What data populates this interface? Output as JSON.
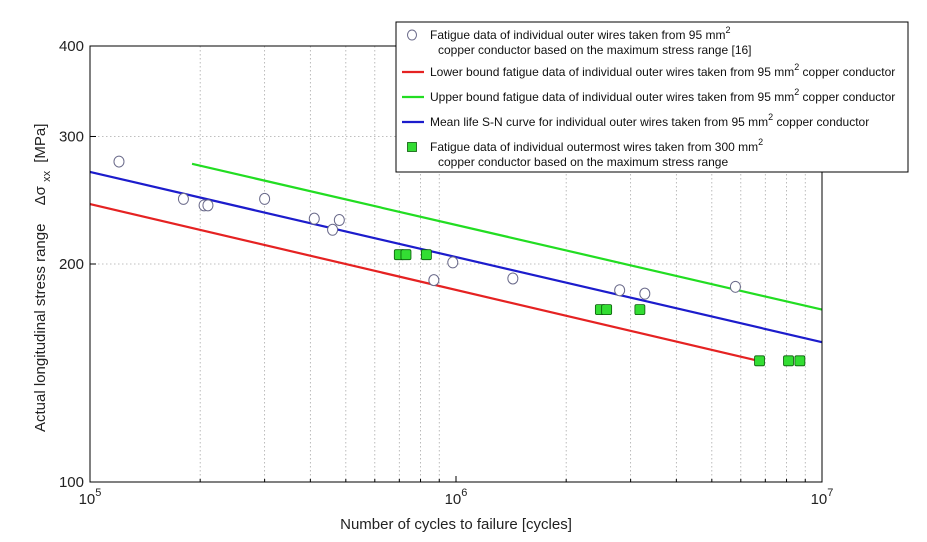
{
  "chart_data": {
    "type": "scatter",
    "x_scale": "log",
    "y_scale": "log",
    "xlim": [
      100000,
      10000000
    ],
    "ylim": [
      100,
      400
    ],
    "xlabel": "Number of cycles to failure [cycles]",
    "ylabel": "Actual longitudinal stress range",
    "ylabel_symbol": "Δσ",
    "ylabel_subscript": "xx",
    "ylabel_unit": "[MPa]",
    "x_ticks": [
      {
        "value": 100000,
        "base": "10",
        "exp": "5"
      },
      {
        "value": 1000000,
        "base": "10",
        "exp": "6"
      },
      {
        "value": 10000000,
        "base": "10",
        "exp": "7"
      }
    ],
    "y_ticks": [
      {
        "value": 100,
        "label": "100"
      },
      {
        "value": 200,
        "label": "200"
      },
      {
        "value": 300,
        "label": "300"
      },
      {
        "value": 400,
        "label": "400"
      }
    ],
    "grid": true,
    "legend_position": "top-right",
    "series": [
      {
        "name": "Fatigue data of individual outer wires taken from 95 mm2 copper conductor based on the maximum stress range [16]",
        "legend_lines": [
          {
            "text": "Fatigue data of individual outer wires taken from 95 mm",
            "sup": "2"
          },
          {
            "text": "copper conductor based on the maximum stress range [16]",
            "sup": ""
          }
        ],
        "kind": "scatter",
        "marker": "open-circle",
        "color": "#6a6a8a",
        "points": [
          [
            120000,
            277
          ],
          [
            180000,
            246
          ],
          [
            205000,
            241
          ],
          [
            210000,
            241
          ],
          [
            300000,
            246
          ],
          [
            410000,
            231
          ],
          [
            460000,
            223
          ],
          [
            480000,
            230
          ],
          [
            870000,
            190
          ],
          [
            980000,
            201
          ],
          [
            1430000,
            191
          ],
          [
            2800000,
            184
          ],
          [
            3280000,
            182
          ],
          [
            5800000,
            186
          ]
        ]
      },
      {
        "name": "Lower bound fatigue data of individual outer wires taken from 95 mm2 copper conductor",
        "legend_lines": [
          {
            "text": "Lower bound fatigue data of individual outer wires taken from 95 mm",
            "sup": "2",
            "after": " copper conductor"
          }
        ],
        "kind": "line",
        "color": "#e52222",
        "points": [
          [
            100000,
            242
          ],
          [
            6700000,
            147
          ]
        ]
      },
      {
        "name": "Upper bound fatigue data of individual outer wires taken from 95 mm2 copper conductor",
        "legend_lines": [
          {
            "text": "Upper bound fatigue data of individual outer wires taken from 95 mm",
            "sup": "2",
            "after": " copper conductor"
          }
        ],
        "kind": "line",
        "color": "#22dd22",
        "points": [
          [
            190000,
            275
          ],
          [
            10000000,
            173
          ]
        ]
      },
      {
        "name": "Mean life S-N curve for individual outer wires taken from 95 mm2 copper conductor",
        "legend_lines": [
          {
            "text": "Mean life S-N curve for individual outer wires taken from 95 mm",
            "sup": "2",
            "after": " copper conductor"
          }
        ],
        "kind": "line",
        "color": "#1c1ccc",
        "points": [
          [
            100000,
            268
          ],
          [
            10000000,
            156
          ]
        ]
      },
      {
        "name": "Fatigue data of individual outermost wires taken from 300 mm2 copper conductor based on the maximum stress range",
        "legend_lines": [
          {
            "text": "Fatigue data of individual outermost wires taken from 300 mm",
            "sup": "2"
          },
          {
            "text": "copper conductor based on the maximum stress range",
            "sup": ""
          }
        ],
        "kind": "scatter",
        "marker": "filled-square",
        "color": "#33dd33",
        "points": [
          [
            700000,
            206
          ],
          [
            730000,
            206
          ],
          [
            830000,
            206
          ],
          [
            2480000,
            173
          ],
          [
            2580000,
            173
          ],
          [
            3180000,
            173
          ],
          [
            6750000,
            147
          ],
          [
            8100000,
            147
          ],
          [
            8700000,
            147
          ]
        ]
      }
    ]
  }
}
